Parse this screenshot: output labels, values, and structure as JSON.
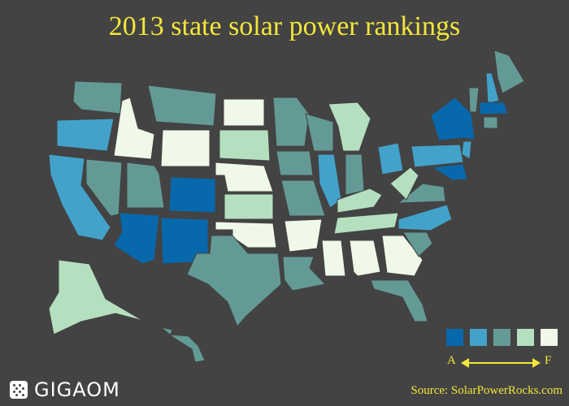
{
  "title": "2013 state solar power rankings",
  "legend": {
    "grades": [
      {
        "grade": "A",
        "color": "#0868ac"
      },
      {
        "grade": "B",
        "color": "#43a2ca"
      },
      {
        "grade": "C",
        "color": "#649a96"
      },
      {
        "grade": "D",
        "color": "#b5e0bf"
      },
      {
        "grade": "F",
        "color": "#f0f9e8"
      }
    ],
    "left_label": "A",
    "right_label": "F"
  },
  "source": "Source: SolarPowerRocks.com",
  "logo": "GIGAOM",
  "states": [
    {
      "id": "WA",
      "grade": "C"
    },
    {
      "id": "OR",
      "grade": "B"
    },
    {
      "id": "CA",
      "grade": "B"
    },
    {
      "id": "NV",
      "grade": "C"
    },
    {
      "id": "ID",
      "grade": "F"
    },
    {
      "id": "MT",
      "grade": "C"
    },
    {
      "id": "WY",
      "grade": "F"
    },
    {
      "id": "UT",
      "grade": "C"
    },
    {
      "id": "CO",
      "grade": "A"
    },
    {
      "id": "AZ",
      "grade": "A"
    },
    {
      "id": "NM",
      "grade": "A"
    },
    {
      "id": "ND",
      "grade": "F"
    },
    {
      "id": "SD",
      "grade": "D"
    },
    {
      "id": "NE",
      "grade": "F"
    },
    {
      "id": "KS",
      "grade": "D"
    },
    {
      "id": "OK",
      "grade": "F"
    },
    {
      "id": "TX",
      "grade": "C"
    },
    {
      "id": "MN",
      "grade": "C"
    },
    {
      "id": "IA",
      "grade": "C"
    },
    {
      "id": "MO",
      "grade": "C"
    },
    {
      "id": "AR",
      "grade": "F"
    },
    {
      "id": "LA",
      "grade": "C"
    },
    {
      "id": "WI",
      "grade": "C"
    },
    {
      "id": "IL",
      "grade": "B"
    },
    {
      "id": "MI",
      "grade": "D"
    },
    {
      "id": "IN",
      "grade": "C"
    },
    {
      "id": "OH",
      "grade": "B"
    },
    {
      "id": "KY",
      "grade": "D"
    },
    {
      "id": "TN",
      "grade": "D"
    },
    {
      "id": "MS",
      "grade": "F"
    },
    {
      "id": "AL",
      "grade": "F"
    },
    {
      "id": "GA",
      "grade": "F"
    },
    {
      "id": "FL",
      "grade": "C"
    },
    {
      "id": "SC",
      "grade": "C"
    },
    {
      "id": "NC",
      "grade": "B"
    },
    {
      "id": "VA",
      "grade": "C"
    },
    {
      "id": "WV",
      "grade": "D"
    },
    {
      "id": "PA",
      "grade": "B"
    },
    {
      "id": "NY",
      "grade": "A"
    },
    {
      "id": "NJ",
      "grade": "B"
    },
    {
      "id": "MD",
      "grade": "A"
    },
    {
      "id": "VT",
      "grade": "C"
    },
    {
      "id": "NH",
      "grade": "B"
    },
    {
      "id": "ME",
      "grade": "C"
    },
    {
      "id": "MA",
      "grade": "A"
    },
    {
      "id": "CT",
      "grade": "C"
    },
    {
      "id": "AK",
      "grade": "D"
    },
    {
      "id": "HI",
      "grade": "C"
    }
  ]
}
